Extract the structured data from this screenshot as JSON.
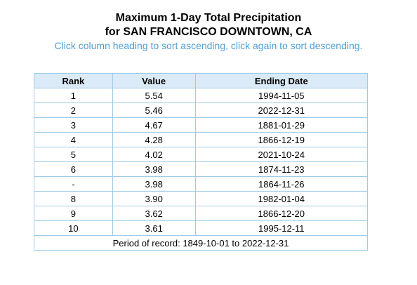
{
  "title": {
    "line1": "Maximum 1-Day Total Precipitation",
    "line2": "for SAN FRANCISCO DOWNTOWN, CA"
  },
  "hint": "Click column heading to sort ascending, click again to sort descending.",
  "table": {
    "headers": {
      "rank": "Rank",
      "value": "Value",
      "date": "Ending Date"
    },
    "rows": [
      {
        "rank": "1",
        "value": "5.54",
        "date": "1994-11-05"
      },
      {
        "rank": "2",
        "value": "5.46",
        "date": "2022-12-31"
      },
      {
        "rank": "3",
        "value": "4.67",
        "date": "1881-01-29"
      },
      {
        "rank": "4",
        "value": "4.28",
        "date": "1866-12-19"
      },
      {
        "rank": "5",
        "value": "4.02",
        "date": "2021-10-24"
      },
      {
        "rank": "6",
        "value": "3.98",
        "date": "1874-11-23"
      },
      {
        "rank": "-",
        "value": "3.98",
        "date": "1864-11-26"
      },
      {
        "rank": "8",
        "value": "3.90",
        "date": "1982-01-04"
      },
      {
        "rank": "9",
        "value": "3.62",
        "date": "1866-12-20"
      },
      {
        "rank": "10",
        "value": "3.61",
        "date": "1995-12-11"
      }
    ],
    "footer": "Period of record: 1849-10-01 to 2022-12-31"
  },
  "colors": {
    "header_bg": "#dbeaf7",
    "border": "#9ecbe9",
    "hint_text": "#4f9fd6"
  }
}
